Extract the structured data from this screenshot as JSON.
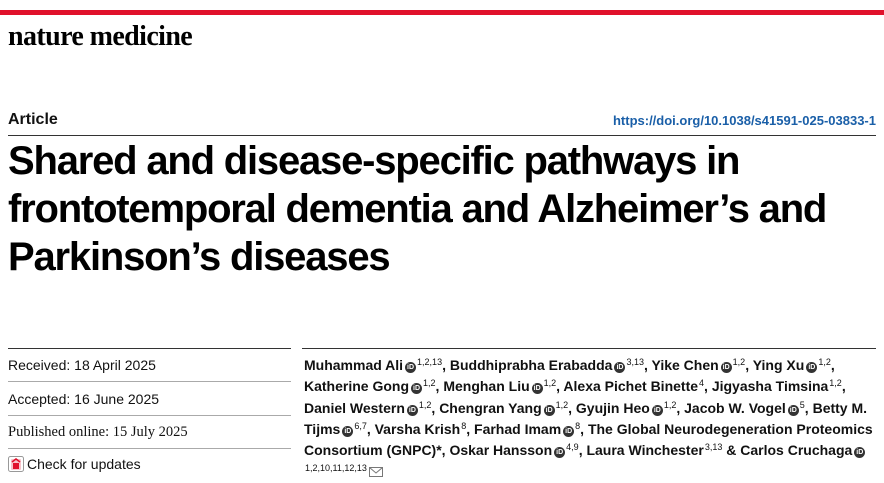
{
  "header": {
    "journal": "nature medicine",
    "article_type": "Article",
    "doi": "https://doi.org/10.1038/s41591-025-03833-1"
  },
  "colors": {
    "brand_red": "#e0112b",
    "link_blue": "#1a5fa8"
  },
  "title": "Shared and disease-specific pathways in frontotemporal dementia and Alzheimer’s and Parkinson’s diseases",
  "dates": {
    "received_label": "Received:",
    "received": "18 April 2025",
    "accepted_label": "Accepted:",
    "accepted": "16 June 2025",
    "published_label": "Published online:",
    "published": "15 July 2025"
  },
  "check_updates": {
    "label": "Check for updates",
    "icon": "check-updates-icon"
  },
  "orcid_icon": "orcid-icon",
  "authors": [
    {
      "name": "Muhammad Ali",
      "orcid": true,
      "aff": "1,2,13",
      "sep": ", "
    },
    {
      "name": "Buddhiprabha Erabadda",
      "orcid": true,
      "aff": "3,13",
      "sep": ", "
    },
    {
      "name": "Yike Chen",
      "orcid": true,
      "aff": "1,2",
      "sep": ", "
    },
    {
      "name": "Ying Xu",
      "orcid": true,
      "aff": "1,2",
      "sep": ", "
    },
    {
      "name": "Katherine Gong",
      "orcid": true,
      "aff": "1,2",
      "sep": ", "
    },
    {
      "name": "Menghan Liu",
      "orcid": true,
      "aff": "1,2",
      "sep": ", "
    },
    {
      "name": "Alexa Pichet Binette",
      "orcid": false,
      "aff": "4",
      "sep": ", "
    },
    {
      "name": "Jigyasha Timsina",
      "orcid": false,
      "aff": "1,2",
      "sep": ", "
    },
    {
      "name": "Daniel Western",
      "orcid": true,
      "aff": "1,2",
      "sep": ", "
    },
    {
      "name": "Chengran Yang",
      "orcid": true,
      "aff": "1,2",
      "sep": ", "
    },
    {
      "name": "Gyujin Heo",
      "orcid": true,
      "aff": "1,2",
      "sep": ", "
    },
    {
      "name": "Jacob W. Vogel",
      "orcid": true,
      "aff": "5",
      "sep": ", "
    },
    {
      "name": "Betty M. Tijms",
      "orcid": true,
      "aff": "6,7",
      "sep": ", "
    },
    {
      "name": "Varsha Krish",
      "orcid": false,
      "aff": "8",
      "sep": ", "
    },
    {
      "name": "Farhad Imam",
      "orcid": true,
      "aff": "8",
      "sep": ", "
    },
    {
      "name": "The Global Neurodegeneration Proteomics Consortium (GNPC)*",
      "orcid": false,
      "aff": "",
      "sep": ", "
    },
    {
      "name": "Oskar Hansson",
      "orcid": true,
      "aff": "4,9",
      "sep": ", "
    },
    {
      "name": "Laura Winchester",
      "orcid": false,
      "aff": "3,13",
      "sep": " & "
    },
    {
      "name": "Carlos Cruchaga",
      "orcid": true,
      "aff": "1,2,10,11,12,13",
      "sep": "",
      "corresponding": true
    }
  ]
}
